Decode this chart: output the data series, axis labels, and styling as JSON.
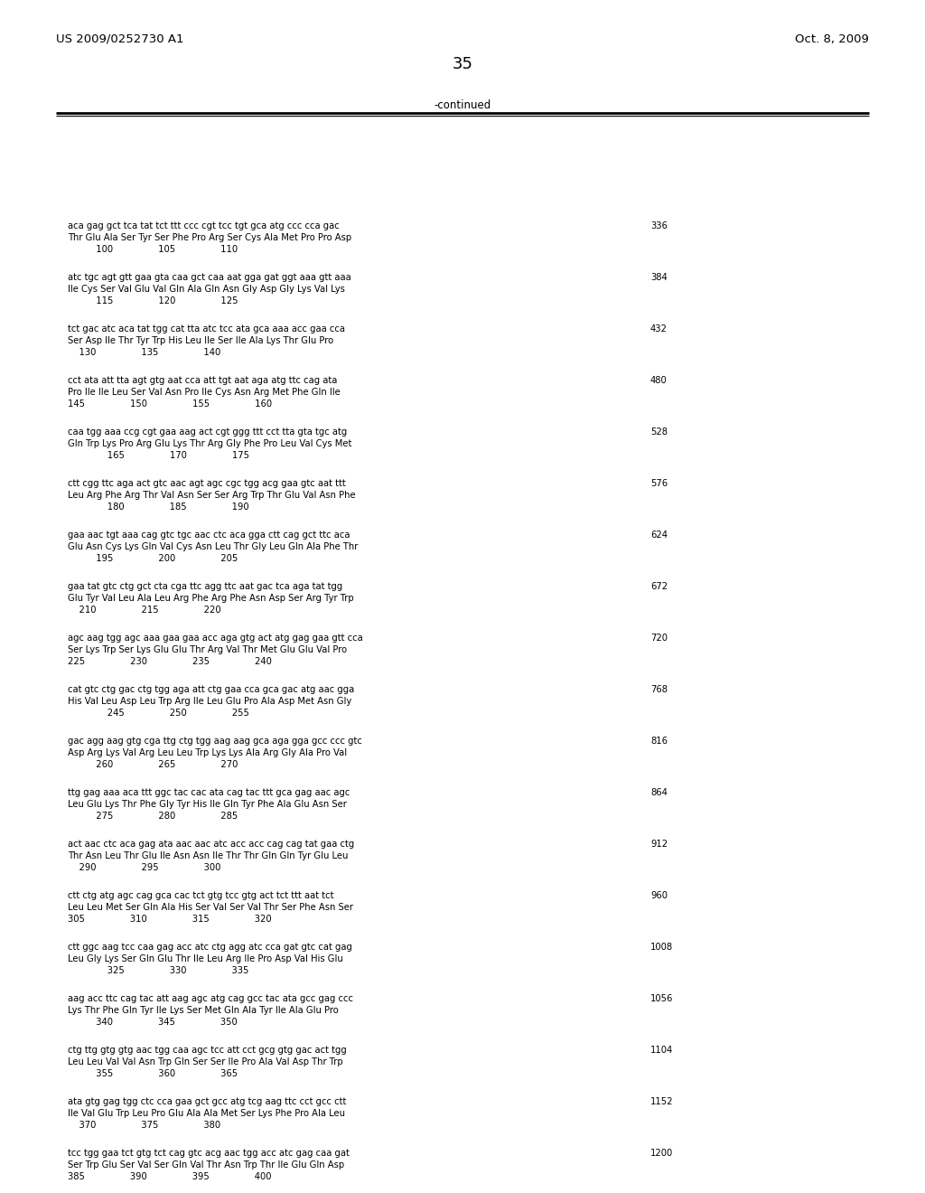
{
  "patent_number": "US 2009/0252730 A1",
  "date": "Oct. 8, 2009",
  "page_number": "35",
  "continued_label": "-continued",
  "background_color": "#ffffff",
  "text_color": "#000000",
  "sequences": [
    {
      "dna": "aca gag gct tca tat tct ttt ccc cgt tcc tgt gca atg ccc cca gac",
      "aa": "Thr Glu Ala Ser Tyr Ser Phe Pro Arg Ser Cys Ala Met Pro Pro Asp",
      "nums": "          100                105                110",
      "num_right": "336"
    },
    {
      "dna": "atc tgc agt gtt gaa gta caa gct caa aat gga gat ggt aaa gtt aaa",
      "aa": "Ile Cys Ser Val Glu Val Gln Ala Gln Asn Gly Asp Gly Lys Val Lys",
      "nums": "          115                120                125",
      "num_right": "384"
    },
    {
      "dna": "tct gac atc aca tat tgg cat tta atc tcc ata gca aaa acc gaa cca",
      "aa": "Ser Asp Ile Thr Tyr Trp His Leu Ile Ser Ile Ala Lys Thr Glu Pro",
      "nums": "    130                135                140",
      "num_right": "432"
    },
    {
      "dna": "cct ata att tta agt gtg aat cca att tgt aat aga atg ttc cag ata",
      "aa": "Pro Ile Ile Leu Ser Val Asn Pro Ile Cys Asn Arg Met Phe Gln Ile",
      "nums": "145                150                155                160",
      "num_right": "480"
    },
    {
      "dna": "caa tgg aaa ccg cgt gaa aag act cgt ggg ttt cct tta gta tgc atg",
      "aa": "Gln Trp Lys Pro Arg Glu Lys Thr Arg Gly Phe Pro Leu Val Cys Met",
      "nums": "              165                170                175",
      "num_right": "528"
    },
    {
      "dna": "ctt cgg ttc aga act gtc aac agt agc cgc tgg acg gaa gtc aat ttt",
      "aa": "Leu Arg Phe Arg Thr Val Asn Ser Ser Arg Trp Thr Glu Val Asn Phe",
      "nums": "              180                185                190",
      "num_right": "576"
    },
    {
      "dna": "gaa aac tgt aaa cag gtc tgc aac ctc aca gga ctt cag gct ttc aca",
      "aa": "Glu Asn Cys Lys Gln Val Cys Asn Leu Thr Gly Leu Gln Ala Phe Thr",
      "nums": "          195                200                205",
      "num_right": "624"
    },
    {
      "dna": "gaa tat gtc ctg gct cta cga ttc agg ttc aat gac tca aga tat tgg",
      "aa": "Glu Tyr Val Leu Ala Leu Arg Phe Arg Phe Asn Asp Ser Arg Tyr Trp",
      "nums": "    210                215                220",
      "num_right": "672"
    },
    {
      "dna": "agc aag tgg agc aaa gaa gaa acc aga gtg act atg gag gaa gtt cca",
      "aa": "Ser Lys Trp Ser Lys Glu Glu Thr Arg Val Thr Met Glu Glu Val Pro",
      "nums": "225                230                235                240",
      "num_right": "720"
    },
    {
      "dna": "cat gtc ctg gac ctg tgg aga att ctg gaa cca gca gac atg aac gga",
      "aa": "His Val Leu Asp Leu Trp Arg Ile Leu Glu Pro Ala Asp Met Asn Gly",
      "nums": "              245                250                255",
      "num_right": "768"
    },
    {
      "dna": "gac agg aag gtg cga ttg ctg tgg aag aag gca aga gga gcc ccc gtc",
      "aa": "Asp Arg Lys Val Arg Leu Leu Trp Lys Lys Ala Arg Gly Ala Pro Val",
      "nums": "          260                265                270",
      "num_right": "816"
    },
    {
      "dna": "ttg gag aaa aca ttt ggc tac cac ata cag tac ttt gca gag aac agc",
      "aa": "Leu Glu Lys Thr Phe Gly Tyr His Ile Gln Tyr Phe Ala Glu Asn Ser",
      "nums": "          275                280                285",
      "num_right": "864"
    },
    {
      "dna": "act aac ctc aca gag ata aac aac atc acc acc cag cag tat gaa ctg",
      "aa": "Thr Asn Leu Thr Glu Ile Asn Asn Ile Thr Thr Gln Gln Tyr Glu Leu",
      "nums": "    290                295                300",
      "num_right": "912"
    },
    {
      "dna": "ctt ctg atg agc cag gca cac tct gtg tcc gtg act tct ttt aat tct",
      "aa": "Leu Leu Met Ser Gln Ala His Ser Val Ser Val Thr Ser Phe Asn Ser",
      "nums": "305                310                315                320",
      "num_right": "960"
    },
    {
      "dna": "ctt ggc aag tcc caa gag acc atc ctg agg atc cca gat gtc cat gag",
      "aa": "Leu Gly Lys Ser Gln Glu Thr Ile Leu Arg Ile Pro Asp Val His Glu",
      "nums": "              325                330                335",
      "num_right": "1008"
    },
    {
      "dna": "aag acc ttc cag tac att aag agc atg cag gcc tac ata gcc gag ccc",
      "aa": "Lys Thr Phe Gln Tyr Ile Lys Ser Met Gln Ala Tyr Ile Ala Glu Pro",
      "nums": "          340                345                350",
      "num_right": "1056"
    },
    {
      "dna": "ctg ttg gtg gtg aac tgg caa agc tcc att cct gcg gtg gac act tgg",
      "aa": "Leu Leu Val Val Asn Trp Gln Ser Ser Ile Pro Ala Val Asp Thr Trp",
      "nums": "          355                360                365",
      "num_right": "1104"
    },
    {
      "dna": "ata gtg gag tgg ctc cca gaa gct gcc atg tcg aag ttc cct gcc ctt",
      "aa": "Ile Val Glu Trp Leu Pro Glu Ala Ala Met Ser Lys Phe Pro Ala Leu",
      "nums": "    370                375                380",
      "num_right": "1152"
    },
    {
      "dna": "tcc tgg gaa tct gtg tct cag gtc acg aac tgg acc atc gag caa gat",
      "aa": "Ser Trp Glu Ser Val Ser Gln Val Thr Asn Trp Thr Ile Glu Gln Asp",
      "nums": "385                390                395                400",
      "num_right": "1200"
    }
  ]
}
